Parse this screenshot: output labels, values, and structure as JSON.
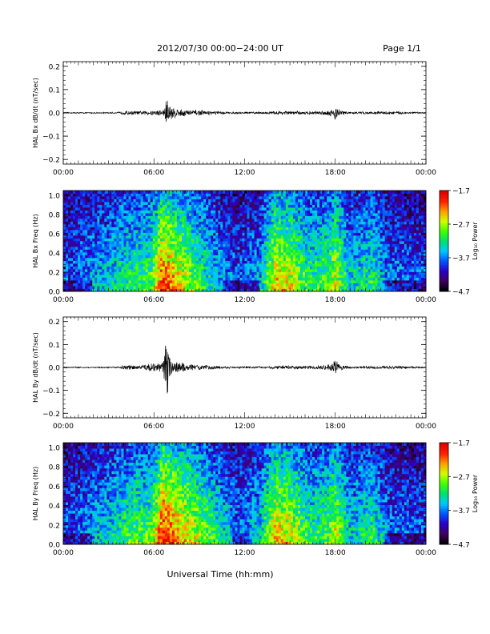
{
  "header": {
    "title": "2012/07/30  00:00−24:00 UT",
    "page": "Page 1/1"
  },
  "footer": {
    "xlabel": "Universal Time (hh:mm)"
  },
  "colors": {
    "trace": "#000000",
    "background": "#ffffff",
    "colormap": [
      "#000000",
      "#400060",
      "#2a00c8",
      "#0055ff",
      "#00c8ff",
      "#00e070",
      "#40ff00",
      "#d0ff00",
      "#ffa000",
      "#ff2000",
      "#e00000"
    ]
  },
  "chart_data": [
    {
      "type": "line",
      "ylabel": "HAL Bx dB/dt (nT/sec)",
      "ylim": [
        -0.22,
        0.22
      ],
      "yticks": [
        -0.2,
        -0.1,
        0.0,
        0.1,
        0.2
      ],
      "yticklabels": [
        "−0.2",
        "−0.1",
        "0.0",
        "0.1",
        "0.2"
      ],
      "xlim": [
        0,
        24
      ],
      "xticklabels": [
        "00:00",
        "06:00",
        "12:00",
        "18:00",
        "00:00"
      ],
      "grid": false,
      "series": [
        {
          "x": [
            0,
            3.5,
            4.2,
            5.0,
            6.6,
            6.75,
            6.9,
            7.0,
            7.2,
            7.6,
            8.3,
            9.5,
            11,
            13.5,
            14.5,
            15.5,
            16.7,
            17.8,
            18.0,
            18.3,
            19,
            21.5,
            23,
            24
          ],
          "amplitude": [
            0.003,
            0.003,
            0.01,
            0.008,
            0.015,
            0.06,
            0.07,
            0.05,
            0.03,
            0.02,
            0.015,
            0.01,
            0.005,
            0.005,
            0.01,
            0.008,
            0.008,
            0.015,
            0.04,
            0.015,
            0.005,
            0.008,
            0.005,
            0.003
          ]
        }
      ]
    },
    {
      "type": "heatmap",
      "ylabel": "HAL Bx Freq (Hz)",
      "ylim": [
        0,
        1.05
      ],
      "yticks": [
        0.0,
        0.2,
        0.4,
        0.6,
        0.8,
        1.0
      ],
      "yticklabels": [
        "0.0",
        "0.2",
        "0.4",
        "0.6",
        "0.8",
        "1.0"
      ],
      "xlim": [
        0,
        24
      ],
      "xticklabels": [
        "00:00",
        "06:00",
        "12:00",
        "18:00",
        "00:00"
      ],
      "colorbar": {
        "label": "Log₁₀ Power",
        "range": [
          -4.7,
          -1.7
        ],
        "ticks": [
          "−1.7",
          "−2.7",
          "−3.7",
          "−4.7"
        ]
      },
      "activity": [
        [
          0,
          0.3
        ],
        [
          3,
          0.45
        ],
        [
          4.5,
          0.55
        ],
        [
          5.8,
          0.6
        ],
        [
          6.6,
          0.95
        ],
        [
          7.5,
          0.8
        ],
        [
          8.5,
          0.65
        ],
        [
          10,
          0.45
        ],
        [
          11.5,
          0.3
        ],
        [
          13,
          0.4
        ],
        [
          14,
          0.8
        ],
        [
          15,
          0.75
        ],
        [
          16.3,
          0.55
        ],
        [
          17.5,
          0.6
        ],
        [
          18,
          0.75
        ],
        [
          19,
          0.45
        ],
        [
          20.5,
          0.55
        ],
        [
          21.5,
          0.35
        ],
        [
          24,
          0.3
        ]
      ]
    },
    {
      "type": "line",
      "ylabel": "HAL By dB/dt (nT/sec)",
      "ylim": [
        -0.22,
        0.22
      ],
      "yticks": [
        -0.2,
        -0.1,
        0.0,
        0.1,
        0.2
      ],
      "yticklabels": [
        "−0.2",
        "−0.1",
        "0.0",
        "0.1",
        "0.2"
      ],
      "xlim": [
        0,
        24
      ],
      "xticklabels": [
        "00:00",
        "06:00",
        "12:00",
        "18:00",
        "00:00"
      ],
      "grid": false,
      "series": [
        {
          "x": [
            0,
            3.5,
            4.2,
            5.0,
            6.6,
            6.75,
            6.9,
            7.0,
            7.2,
            7.6,
            8.3,
            9.5,
            11,
            13.5,
            14.5,
            15.5,
            16.7,
            17.8,
            18.0,
            18.3,
            19,
            21.5,
            23,
            24
          ],
          "amplitude": [
            0.003,
            0.003,
            0.012,
            0.008,
            0.03,
            0.12,
            0.14,
            0.06,
            0.035,
            0.03,
            0.015,
            0.01,
            0.005,
            0.005,
            0.01,
            0.008,
            0.008,
            0.02,
            0.035,
            0.015,
            0.005,
            0.008,
            0.005,
            0.003
          ]
        }
      ]
    },
    {
      "type": "heatmap",
      "ylabel": "HAL By Freq (Hz)",
      "ylim": [
        0,
        1.05
      ],
      "yticks": [
        0.0,
        0.2,
        0.4,
        0.6,
        0.8,
        1.0
      ],
      "yticklabels": [
        "0.0",
        "0.2",
        "0.4",
        "0.6",
        "0.8",
        "1.0"
      ],
      "xlim": [
        0,
        24
      ],
      "xticklabels": [
        "00:00",
        "06:00",
        "12:00",
        "18:00",
        "00:00"
      ],
      "colorbar": {
        "label": "Log₁₀ Power",
        "range": [
          -4.7,
          -1.7
        ],
        "ticks": [
          "−1.7",
          "−2.7",
          "−3.7",
          "−4.7"
        ]
      },
      "activity": [
        [
          0,
          0.3
        ],
        [
          3,
          0.45
        ],
        [
          4.5,
          0.6
        ],
        [
          5.8,
          0.6
        ],
        [
          6.6,
          1.0
        ],
        [
          7.5,
          0.85
        ],
        [
          8.5,
          0.75
        ],
        [
          10,
          0.55
        ],
        [
          11.5,
          0.35
        ],
        [
          13,
          0.45
        ],
        [
          14,
          0.8
        ],
        [
          15,
          0.75
        ],
        [
          16.3,
          0.55
        ],
        [
          17.5,
          0.6
        ],
        [
          18,
          0.75
        ],
        [
          19,
          0.45
        ],
        [
          20.5,
          0.55
        ],
        [
          21.5,
          0.35
        ],
        [
          24,
          0.3
        ]
      ]
    }
  ]
}
